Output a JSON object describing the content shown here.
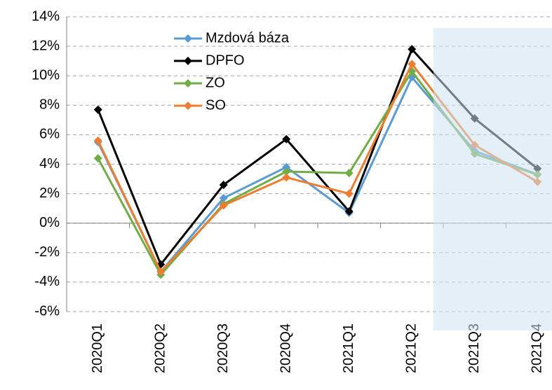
{
  "chart_data": {
    "type": "line",
    "categories": [
      "2020Q1",
      "2020Q2",
      "2020Q3",
      "2020Q4",
      "2021Q1",
      "2021Q2",
      "2021Q3",
      "2021Q4"
    ],
    "series": [
      {
        "name": "Mzdová báza",
        "color": "#5b9bd5",
        "values": [
          5.5,
          -3.3,
          1.7,
          3.8,
          0.7,
          9.9,
          4.9,
          3.3
        ]
      },
      {
        "name": "DPFO",
        "color": "#000000",
        "values": [
          7.7,
          -2.8,
          2.6,
          5.7,
          0.8,
          11.8,
          7.1,
          3.7
        ]
      },
      {
        "name": "ZO",
        "color": "#70ad47",
        "values": [
          4.4,
          -3.5,
          1.3,
          3.5,
          3.4,
          10.3,
          4.7,
          3.3
        ]
      },
      {
        "name": "SO",
        "color": "#ed7d31",
        "values": [
          5.6,
          -3.3,
          1.2,
          3.1,
          2.0,
          10.8,
          5.3,
          2.8
        ]
      }
    ],
    "ylim": [
      -6,
      14
    ],
    "yticks": [
      {
        "value": -6,
        "label": "-6%"
      },
      {
        "value": -4,
        "label": "-4%"
      },
      {
        "value": -2,
        "label": "-2%"
      },
      {
        "value": 0,
        "label": "0%"
      },
      {
        "value": 2,
        "label": "2%"
      },
      {
        "value": 4,
        "label": "4%"
      },
      {
        "value": 6,
        "label": "6%"
      },
      {
        "value": 8,
        "label": "8%"
      },
      {
        "value": 10,
        "label": "10%"
      },
      {
        "value": 12,
        "label": "12%"
      },
      {
        "value": 14,
        "label": "14%"
      }
    ],
    "grid": true
  }
}
